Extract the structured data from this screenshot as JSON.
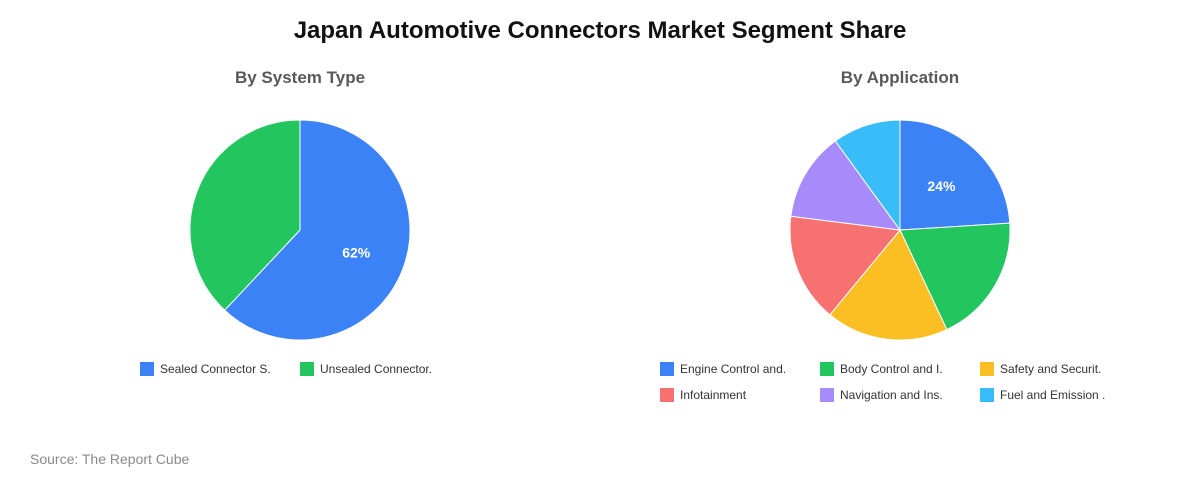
{
  "title": "Japan Automotive Connectors Market Segment Share",
  "source": "Source: The Report Cube",
  "chart_data": [
    {
      "type": "pie",
      "title": "By System Type",
      "categories": [
        "Sealed Connector S.",
        "Unsealed Connector."
      ],
      "values": [
        62,
        38
      ],
      "colors": [
        "#3b82f6",
        "#22c55e"
      ],
      "data_labels": [
        "62%",
        ""
      ],
      "legend": "bottom"
    },
    {
      "type": "pie",
      "title": "By Application",
      "categories": [
        "Engine Control and.",
        "Body Control and I.",
        "Safety and Securit.",
        "Infotainment",
        "Navigation and Ins.",
        "Fuel and Emission ."
      ],
      "values": [
        24,
        19,
        18,
        16,
        13,
        10
      ],
      "colors": [
        "#3b82f6",
        "#22c55e",
        "#fbbf24",
        "#f87171",
        "#a78bfa",
        "#38bdf8"
      ],
      "data_labels": [
        "24%",
        "",
        "",
        "",
        "",
        ""
      ],
      "legend": "bottom"
    }
  ]
}
